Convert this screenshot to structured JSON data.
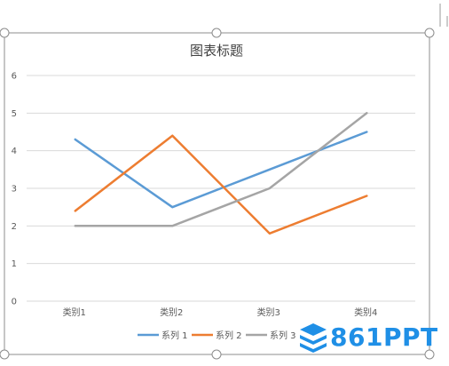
{
  "chart_data": {
    "type": "line",
    "title": "图表标题",
    "categories": [
      "类别1",
      "类别2",
      "类别3",
      "类别4"
    ],
    "series": [
      {
        "name": "系列 1",
        "values": [
          4.3,
          2.5,
          3.5,
          4.5
        ]
      },
      {
        "name": "系列 2",
        "values": [
          2.4,
          4.4,
          1.8,
          2.8
        ]
      },
      {
        "name": "系列 3",
        "values": [
          2.0,
          2.0,
          3.0,
          5.0
        ]
      }
    ],
    "ylim": [
      0,
      6
    ],
    "yticks": [
      "0",
      "1",
      "2",
      "3",
      "4",
      "5",
      "6"
    ],
    "grid": true,
    "legend_position": "bottom"
  },
  "colors": {
    "series": [
      "#5b9bd5",
      "#ed7d31",
      "#a5a5a5"
    ],
    "watermark": "#1f8fe6"
  },
  "watermark": {
    "text": "861PPT"
  }
}
